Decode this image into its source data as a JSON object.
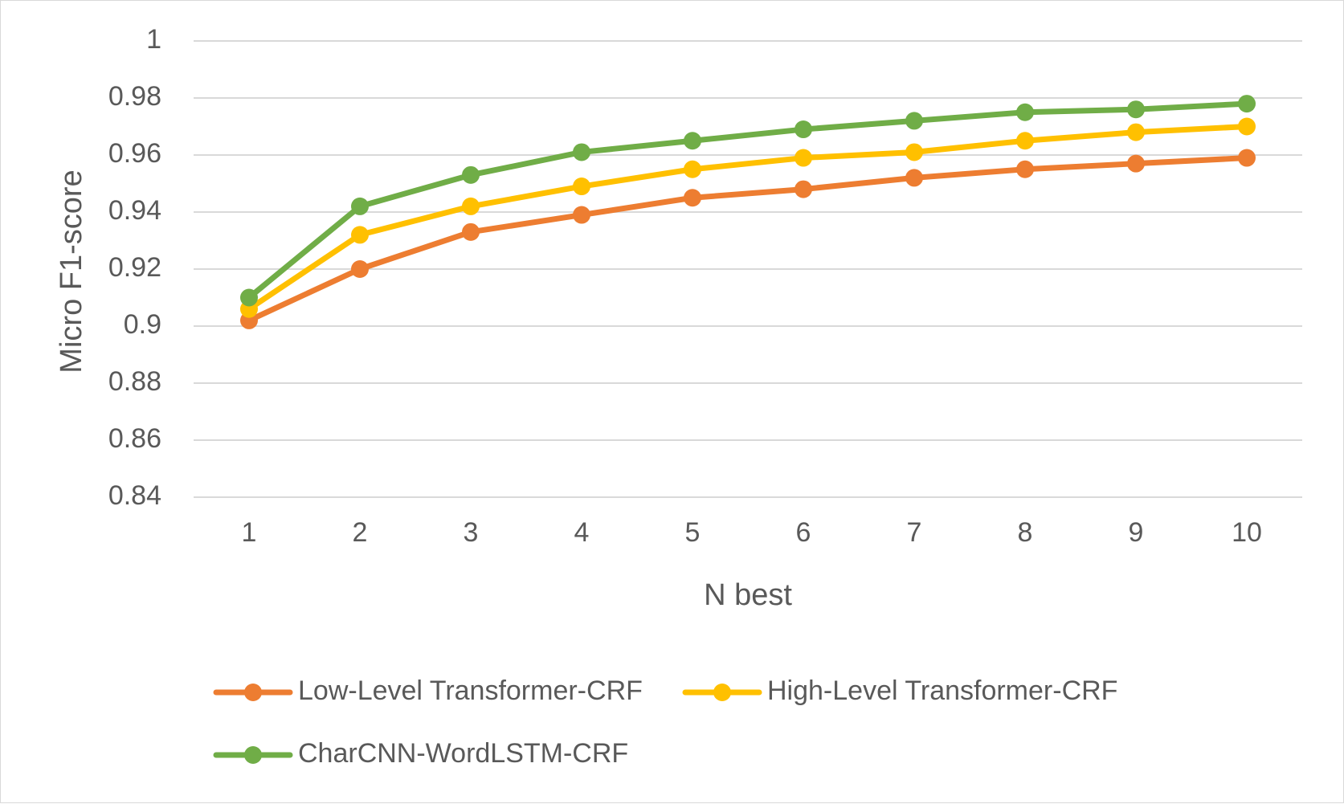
{
  "chart_data": {
    "type": "line",
    "title": "",
    "xlabel": "N best",
    "ylabel": "Micro F1-score",
    "categories": [
      "1",
      "2",
      "3",
      "4",
      "5",
      "6",
      "7",
      "8",
      "9",
      "10"
    ],
    "ylim": [
      0.84,
      1
    ],
    "yticks": [
      "0.84",
      "0.86",
      "0.88",
      "0.9",
      "0.92",
      "0.94",
      "0.96",
      "0.98",
      "1"
    ],
    "grid": true,
    "legend_position": "bottom",
    "series": [
      {
        "name": "Low-Level Transformer-CRF",
        "color": "#ED7D31",
        "values": [
          0.902,
          0.92,
          0.933,
          0.939,
          0.945,
          0.948,
          0.952,
          0.955,
          0.957,
          0.959
        ]
      },
      {
        "name": "High-Level Transformer-CRF",
        "color": "#FFC000",
        "values": [
          0.906,
          0.932,
          0.942,
          0.949,
          0.955,
          0.959,
          0.961,
          0.965,
          0.968,
          0.97
        ]
      },
      {
        "name": "CharCNN-WordLSTM-CRF",
        "color": "#70AD47",
        "values": [
          0.91,
          0.942,
          0.953,
          0.961,
          0.965,
          0.969,
          0.972,
          0.975,
          0.976,
          0.978
        ]
      }
    ]
  }
}
